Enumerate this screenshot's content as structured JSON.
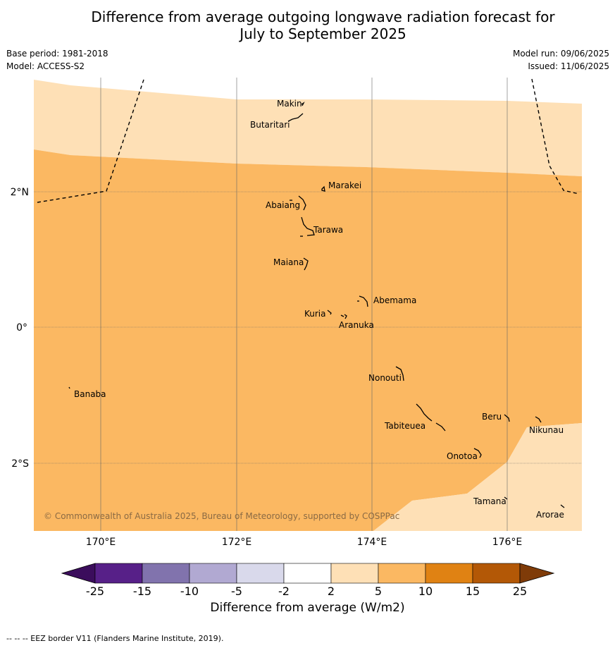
{
  "title_line1": "Difference from average outgoing longwave radiation forecast for",
  "title_line2": "July to September 2025",
  "base_period": "Base period: 1981-2018",
  "model": "Model: ACCESS-S2",
  "model_run": "Model run: 09/06/2025",
  "issued": "Issued: 11/06/2025",
  "lat_labels": [
    "2°N",
    "0°",
    "2°S"
  ],
  "lon_labels": [
    "170°E",
    "172°E",
    "174°E",
    "176°E"
  ],
  "places": [
    "Makin",
    "Butaritari",
    "Marakei",
    "Abaiang",
    "Tarawa",
    "Maiana",
    "Abemama",
    "Kuria",
    "Aranuka",
    "Nonouti",
    "Banaba",
    "Beru",
    "Nikunau",
    "Tabiteuea",
    "Onotoa",
    "Tamana",
    "Arorae"
  ],
  "copyright": "© Commonwealth of Australia 2025, Bureau of Meteorology, supported by COSPPac",
  "colorbar": {
    "ticks": [
      "-25",
      "-15",
      "-10",
      "-5",
      "-2",
      "2",
      "5",
      "10",
      "15",
      "25"
    ],
    "colors": [
      "#3b0d5c",
      "#572088",
      "#8173ad",
      "#b1a9d2",
      "#d9d9eb",
      "#ffffff",
      "#fee0b6",
      "#fbb862",
      "#e08213",
      "#b35806",
      "#7f3b08"
    ],
    "label": "Difference from average (W/m2)"
  },
  "footnote": "--  --  -- EEZ border V11 (Flanders Marine Institute, 2019)."
}
